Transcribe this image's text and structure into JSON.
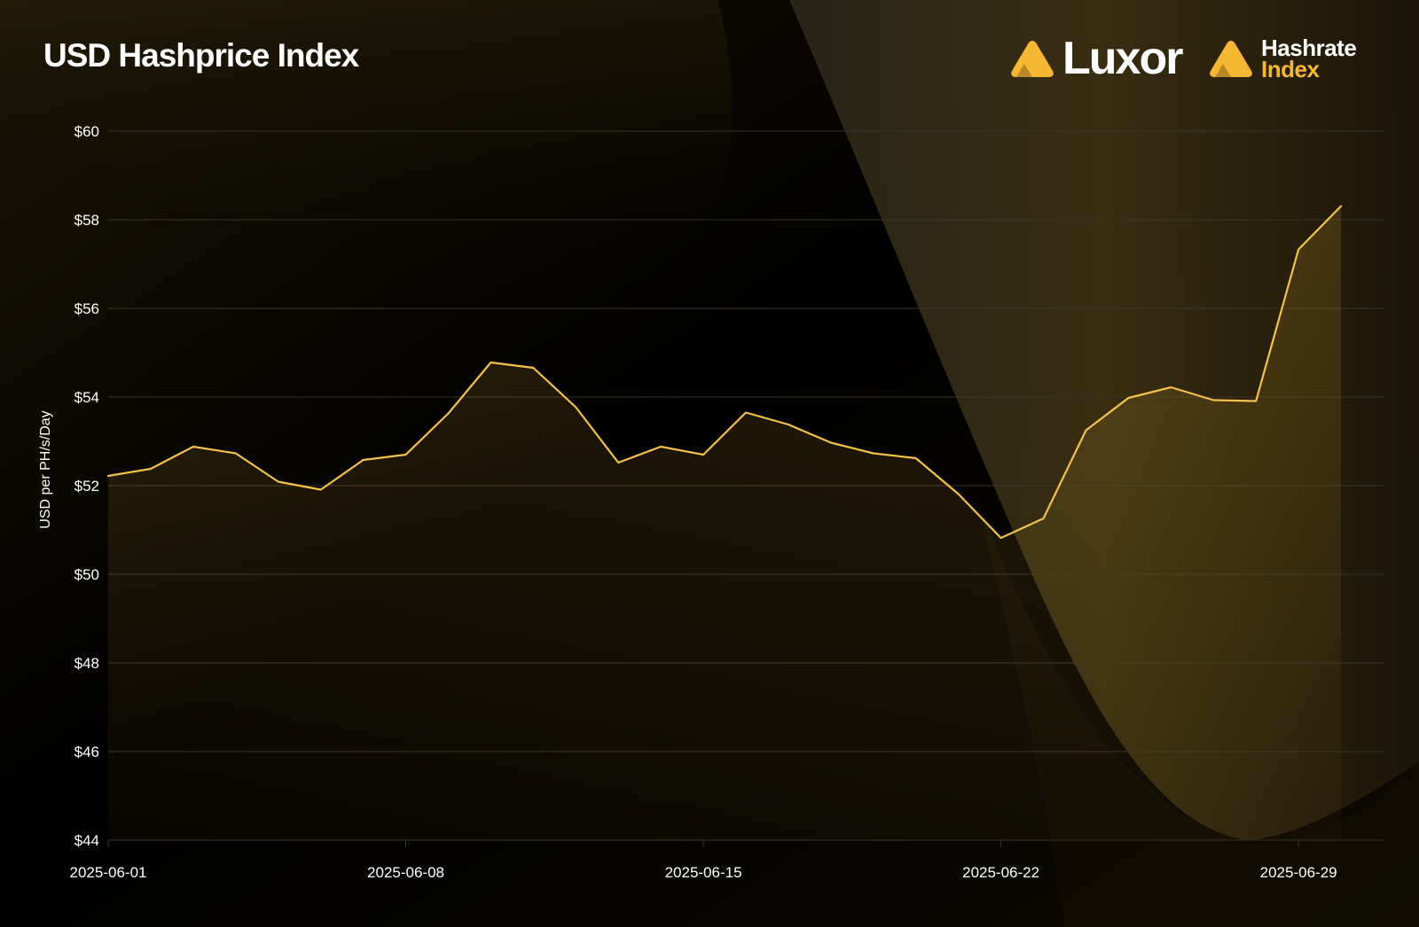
{
  "title": "USD Hashprice Index",
  "brands": {
    "luxor": {
      "name": "Luxor",
      "logo_icon": "luxor-triangle-icon"
    },
    "hashrate_index": {
      "line1": "Hashrate",
      "line2": "Index",
      "logo_icon": "hashrate-index-triangle-icon"
    }
  },
  "colors": {
    "background": "#000000",
    "accent": "#f6b732",
    "line": "#f4c24c",
    "grid": "#3a3528"
  },
  "chart_data": {
    "type": "area",
    "title": "USD Hashprice Index",
    "xlabel": "",
    "ylabel": "USD per PH/s/Day",
    "ylim": [
      44,
      60
    ],
    "yticks": [
      44,
      46,
      48,
      50,
      52,
      54,
      56,
      58,
      60
    ],
    "ytick_labels": [
      "$44",
      "$46",
      "$48",
      "$50",
      "$52",
      "$54",
      "$56",
      "$58",
      "$60"
    ],
    "xlim": [
      "2025-06-01",
      "2025-07-01"
    ],
    "xticks": [
      "2025-06-01",
      "2025-06-08",
      "2025-06-15",
      "2025-06-22",
      "2025-06-29"
    ],
    "grid": true,
    "series": [
      {
        "name": "",
        "x": [
          "2025-06-01",
          "2025-06-02",
          "2025-06-03",
          "2025-06-04",
          "2025-06-05",
          "2025-06-06",
          "2025-06-07",
          "2025-06-08",
          "2025-06-09",
          "2025-06-10",
          "2025-06-11",
          "2025-06-12",
          "2025-06-13",
          "2025-06-14",
          "2025-06-15",
          "2025-06-16",
          "2025-06-17",
          "2025-06-18",
          "2025-06-19",
          "2025-06-20",
          "2025-06-21",
          "2025-06-22",
          "2025-06-23",
          "2025-06-24",
          "2025-06-25",
          "2025-06-26",
          "2025-06-27",
          "2025-06-28",
          "2025-06-29",
          "2025-06-30"
        ],
        "values": [
          52.22,
          52.38,
          52.88,
          52.73,
          52.09,
          51.91,
          52.58,
          52.7,
          53.63,
          54.78,
          54.66,
          53.77,
          52.52,
          52.88,
          52.7,
          53.65,
          53.38,
          52.97,
          52.73,
          52.62,
          51.81,
          50.82,
          51.26,
          53.25,
          53.98,
          54.22,
          53.93,
          53.91,
          57.33,
          58.31
        ]
      }
    ]
  }
}
